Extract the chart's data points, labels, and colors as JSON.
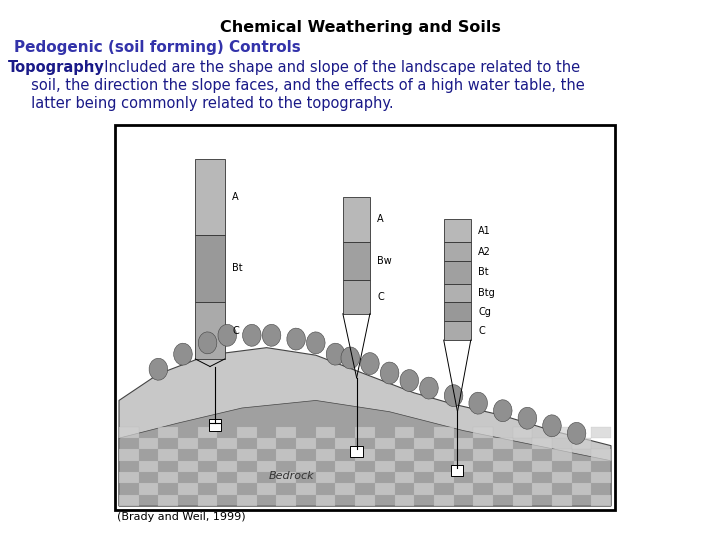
{
  "title": "Chemical Weathering and Soils",
  "subtitle": "Pedogenic (soil forming) Controls",
  "body_bold": "Topography",
  "body_rest": ":  Included are the shape and slope of the landscape related to the\n     soil, the direction the slope faces, and the effects of a high water table, the\n     latter being commonly related to the topography.",
  "caption": "(Brady and Weil, 1999)",
  "title_color": "#000000",
  "subtitle_color": "#3333aa",
  "body_color": "#1a1a88",
  "bg_color": "#ffffff",
  "title_fontsize": 11.5,
  "subtitle_fontsize": 11,
  "body_fontsize": 10.5,
  "caption_fontsize": 8
}
